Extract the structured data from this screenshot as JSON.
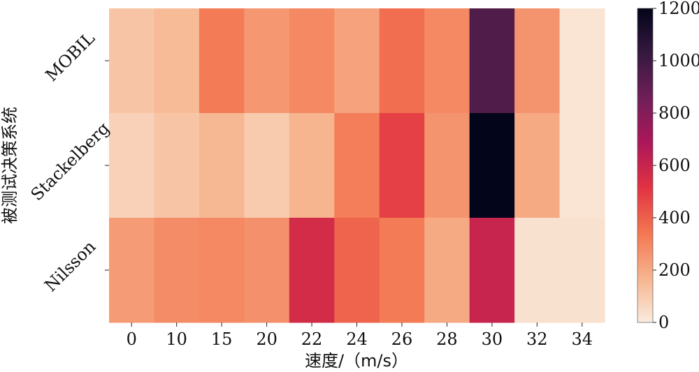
{
  "chart_data": {
    "type": "heatmap",
    "title": "",
    "xlabel": "速度/（m/s）",
    "ylabel": "被测试决策系统",
    "x": [
      "0",
      "10",
      "15",
      "20",
      "22",
      "24",
      "26",
      "28",
      "30",
      "32",
      "34"
    ],
    "y": [
      "MOBIL",
      "Stackelberg",
      "Nilsson"
    ],
    "values": [
      [
        120,
        150,
        330,
        250,
        290,
        220,
        360,
        290,
        950,
        260,
        20
      ],
      [
        80,
        120,
        160,
        100,
        170,
        320,
        480,
        260,
        1200,
        200,
        20
      ],
      [
        240,
        280,
        290,
        270,
        560,
        390,
        330,
        200,
        600,
        30,
        30
      ]
    ],
    "colorbar": {
      "min": 0,
      "max": 1200,
      "ticks": [
        "0",
        "200",
        "400",
        "600",
        "800",
        "1000",
        "1200"
      ]
    },
    "colormap": [
      "#faebdd",
      "#f6b48e",
      "#f37651",
      "#e13342",
      "#ad1759",
      "#701f57",
      "#35193e",
      "#03051a"
    ],
    "grid": false,
    "legend": "colorbar-right"
  }
}
